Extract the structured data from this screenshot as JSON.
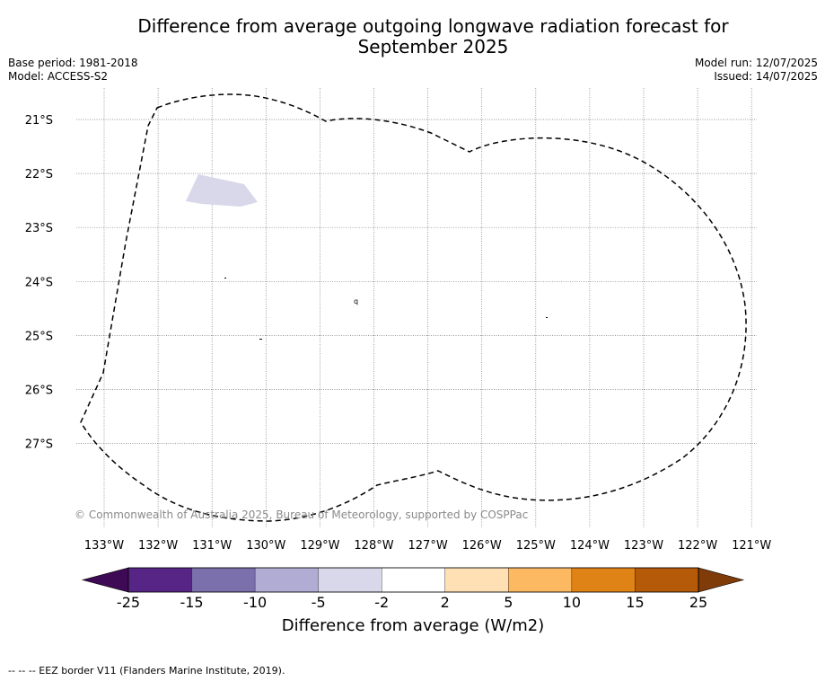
{
  "title_line1": "Difference from average outgoing longwave radiation forecast for",
  "title_line2": "September 2025",
  "meta_left": {
    "base_period": "Base period: 1981-2018",
    "model": "Model: ACCESS-S2"
  },
  "meta_right": {
    "model_run": "Model run: 12/07/2025",
    "issued": "Issued: 14/07/2025"
  },
  "map": {
    "lon_labels": [
      "133°W",
      "132°W",
      "131°W",
      "130°W",
      "129°W",
      "128°W",
      "127°W",
      "126°W",
      "125°W",
      "124°W",
      "123°W",
      "122°W",
      "121°W"
    ],
    "lat_labels": [
      "21°S",
      "22°S",
      "23°S",
      "24°S",
      "25°S",
      "26°S",
      "27°S"
    ],
    "copyright": "© Commonwealth of Australia 2025, Bureau of Meteorology, supported by COSPPac",
    "anomaly_region": {
      "category": "-5 to -2",
      "color": "#d8d8ea"
    }
  },
  "colorbar": {
    "title": "Difference from average (W/m2)",
    "ticks": [
      "-25",
      "-15",
      "-10",
      "-5",
      "-2",
      "2",
      "5",
      "10",
      "15",
      "25"
    ],
    "colors": [
      "#3e0a55",
      "#562585",
      "#7b6fac",
      "#b1acd4",
      "#d8d8ea",
      "#ffffff",
      "#fee0b4",
      "#fdb862",
      "#e08316",
      "#b45a09",
      "#7f3b08"
    ]
  },
  "legend_footer": "--  --  -- EEZ border V11 (Flanders Marine Institute, 2019)."
}
